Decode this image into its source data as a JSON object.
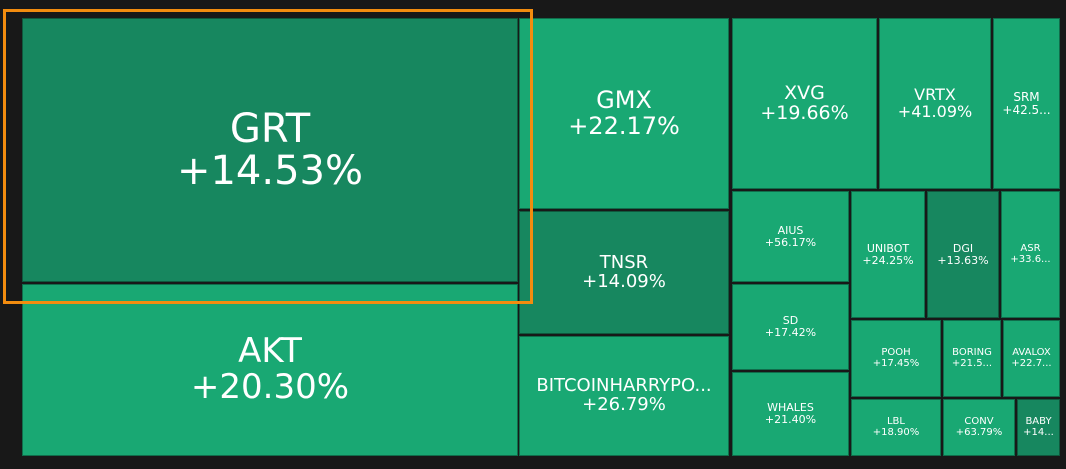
{
  "tiles": [
    {
      "symbol": "GRT",
      "change": "+14.53%",
      "color": "#17875f"
    },
    {
      "symbol": "AKT",
      "change": "+20.30%",
      "color": "#19a873"
    },
    {
      "symbol": "GMX",
      "change": "+22.17%",
      "color": "#19a873"
    },
    {
      "symbol": "TNSR",
      "change": "+14.09%",
      "color": "#17875f"
    },
    {
      "symbol": "BITCOINHARRYPO...",
      "change": "+26.79%",
      "color": "#19a873"
    },
    {
      "symbol": "XVG",
      "change": "+19.66%",
      "color": "#19a873"
    },
    {
      "symbol": "VRTX",
      "change": "+41.09%",
      "color": "#19a873"
    },
    {
      "symbol": "SRM",
      "change": "+42.5...",
      "color": "#19a873"
    },
    {
      "symbol": "AIUS",
      "change": "+56.17%",
      "color": "#19a873"
    },
    {
      "symbol": "SD",
      "change": "+17.42%",
      "color": "#19a873"
    },
    {
      "symbol": "WHALES",
      "change": "+21.40%",
      "color": "#19a873"
    },
    {
      "symbol": "UNIBOT",
      "change": "+24.25%",
      "color": "#19a873"
    },
    {
      "symbol": "DGI",
      "change": "+13.63%",
      "color": "#17875f"
    },
    {
      "symbol": "ASR",
      "change": "+33.6...",
      "color": "#19a873"
    },
    {
      "symbol": "POOH",
      "change": "+17.45%",
      "color": "#19a873"
    },
    {
      "symbol": "BORING",
      "change": "+21.5...",
      "color": "#19a873"
    },
    {
      "symbol": "AVALOX",
      "change": "+22.7...",
      "color": "#19a873"
    },
    {
      "symbol": "LBL",
      "change": "+18.90%",
      "color": "#19a873"
    },
    {
      "symbol": "CONV",
      "change": "+63.79%",
      "color": "#19a873"
    },
    {
      "symbol": "BABY",
      "change": "+14...",
      "color": "#17875f"
    }
  ]
}
